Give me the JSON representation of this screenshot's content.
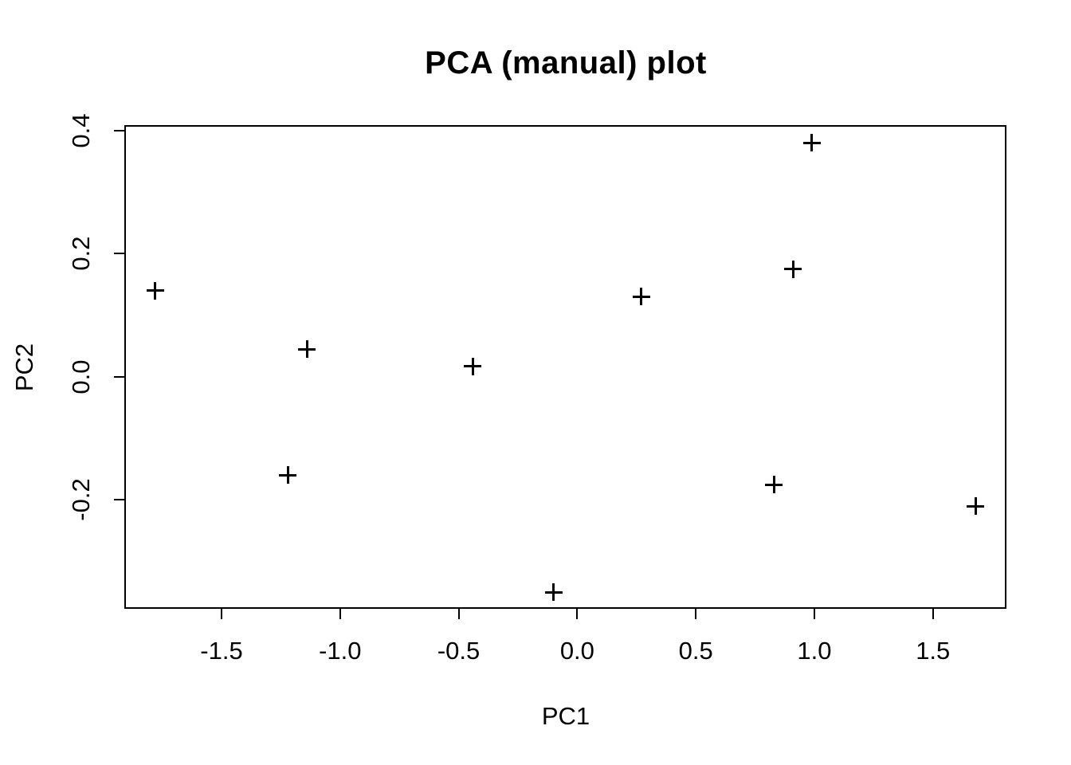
{
  "chart_data": {
    "type": "scatter",
    "title": "PCA (manual) plot",
    "xlabel": "PC1",
    "ylabel": "PC2",
    "marker": "plus-cross",
    "marker_color": "#000000",
    "axis_color": "#000000",
    "background_color": "#ffffff",
    "grid": false,
    "legend_position": "none",
    "xlim": [
      -1.91,
      1.81
    ],
    "ylim": [
      -0.377,
      0.409
    ],
    "x_ticks": [
      -1.5,
      -1.0,
      -0.5,
      0.0,
      0.5,
      1.0,
      1.5
    ],
    "x_tick_labels": [
      "-1.5",
      "-1.0",
      "-0.5",
      "0.0",
      "0.5",
      "1.0",
      "1.5"
    ],
    "y_ticks": [
      -0.2,
      0.0,
      0.2,
      0.4
    ],
    "y_tick_labels": [
      "-0.2",
      "0.0",
      "0.2",
      "0.4"
    ],
    "points": [
      {
        "x": -1.78,
        "y": 0.14
      },
      {
        "x": -1.22,
        "y": -0.16
      },
      {
        "x": -1.14,
        "y": 0.045
      },
      {
        "x": -0.44,
        "y": 0.017
      },
      {
        "x": -0.1,
        "y": -0.35
      },
      {
        "x": 0.27,
        "y": 0.13
      },
      {
        "x": 0.83,
        "y": -0.175
      },
      {
        "x": 0.91,
        "y": 0.175
      },
      {
        "x": 0.99,
        "y": 0.38
      },
      {
        "x": 1.68,
        "y": -0.21
      }
    ]
  }
}
